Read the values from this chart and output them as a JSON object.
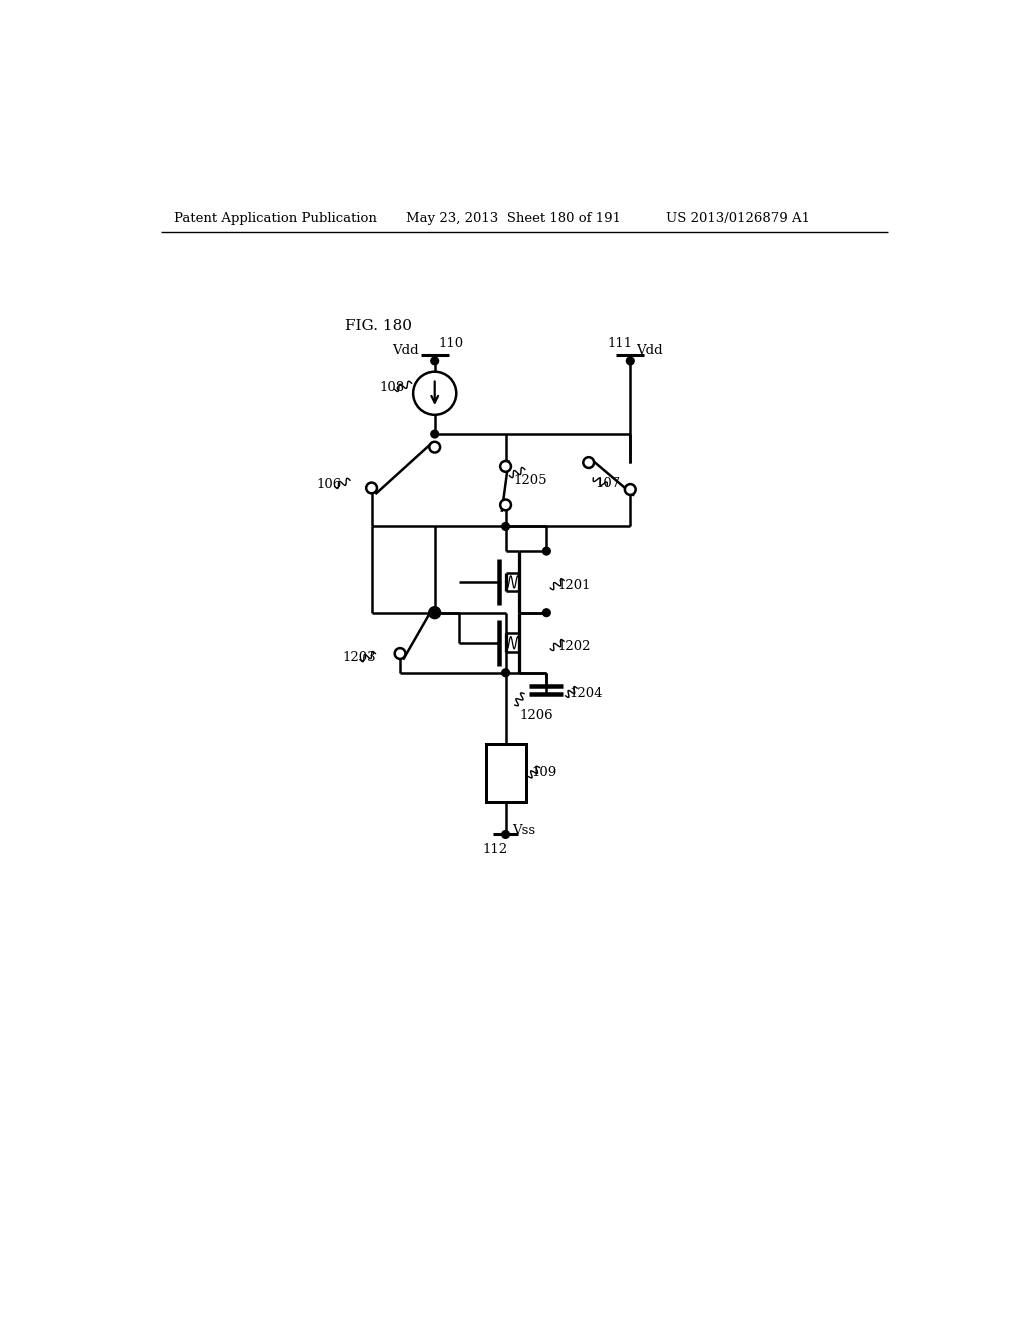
{
  "title": "FIG. 180",
  "header_left": "Patent Application Publication",
  "header_center": "May 23, 2013  Sheet 180 of 191",
  "header_right": "US 2013/0126879 A1",
  "background_color": "#ffffff",
  "line_color": "#000000",
  "labels": {
    "fig": "FIG. 180",
    "vdd_left": "Vdd",
    "vdd_right": "Vdd",
    "vss": "Vss",
    "n108": "108",
    "n109": "109",
    "n110": "110",
    "n111": "111",
    "n112": "112",
    "n106": "106",
    "n107": "107",
    "n1201": "1201",
    "n1202": "1202",
    "n1203": "1203",
    "n1204": "1204",
    "n1205": "1205",
    "n1206": "1206"
  }
}
